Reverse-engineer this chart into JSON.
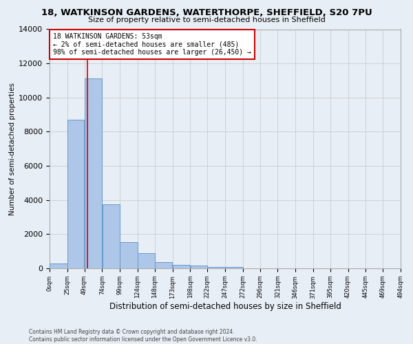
{
  "title": "18, WATKINSON GARDENS, WATERTHORPE, SHEFFIELD, S20 7PU",
  "subtitle": "Size of property relative to semi-detached houses in Sheffield",
  "xlabel": "Distribution of semi-detached houses by size in Sheffield",
  "ylabel": "Number of semi-detached properties",
  "bin_edges": [
    0,
    25,
    49,
    74,
    99,
    124,
    148,
    173,
    198,
    222,
    247,
    272,
    296,
    321,
    346,
    371,
    395,
    420,
    445,
    469,
    494
  ],
  "bin_labels": [
    "0sqm",
    "25sqm",
    "49sqm",
    "74sqm",
    "99sqm",
    "124sqm",
    "148sqm",
    "173sqm",
    "198sqm",
    "222sqm",
    "247sqm",
    "272sqm",
    "296sqm",
    "321sqm",
    "346sqm",
    "371sqm",
    "395sqm",
    "420sqm",
    "445sqm",
    "469sqm",
    "494sqm"
  ],
  "bar_heights": [
    300,
    8700,
    11100,
    3750,
    1550,
    900,
    350,
    200,
    150,
    100,
    100,
    0,
    0,
    0,
    0,
    0,
    0,
    0,
    0,
    0
  ],
  "bar_color": "#aec6e8",
  "bar_edge_color": "#6699cc",
  "property_size": 53,
  "property_line_color": "#cc0000",
  "annotation_line1": "18 WATKINSON GARDENS: 53sqm",
  "annotation_line2": "← 2% of semi-detached houses are smaller (485)",
  "annotation_line3": "98% of semi-detached houses are larger (26,450) →",
  "annotation_box_color": "#ffffff",
  "annotation_box_edge_color": "#cc0000",
  "ylim": [
    0,
    14000
  ],
  "yticks": [
    0,
    2000,
    4000,
    6000,
    8000,
    10000,
    12000,
    14000
  ],
  "grid_color": "#cccccc",
  "background_color": "#e8eef5",
  "footer_line1": "Contains HM Land Registry data © Crown copyright and database right 2024.",
  "footer_line2": "Contains public sector information licensed under the Open Government Licence v3.0."
}
